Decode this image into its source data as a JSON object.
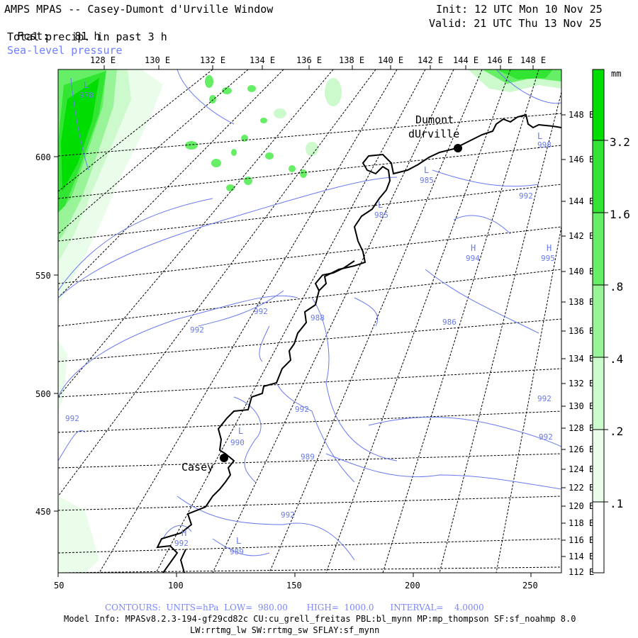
{
  "header": {
    "title": "AMPS MPAS -- Casey-Dumont d'Urville Window",
    "fcst_label": "Fcst:",
    "fcst_value": "81 h",
    "field": "Total precip. in past 3 h",
    "overlay": "Sea-level pressure",
    "init": "Init: 12 UTC Mon 10 Nov 25",
    "valid": "Valid: 21 UTC Thu 13 Nov 25"
  },
  "axes": {
    "top_lon": [
      "128 E",
      "130 E",
      "132 E",
      "134 E",
      "136 E",
      "138 E",
      "140 E",
      "142 E",
      "144 E",
      "146 E",
      "148 E"
    ],
    "right_lon": [
      "148 E",
      "146 E",
      "144 E",
      "142 E",
      "140 E",
      "138 E",
      "136 E",
      "134 E",
      "132 E",
      "130 E",
      "128 E",
      "126 E",
      "124 E",
      "122 E",
      "120 E",
      "118 E",
      "116 E",
      "114 E",
      "112 E"
    ],
    "left": [
      "600",
      "550",
      "500",
      "450"
    ],
    "bottom": [
      "50",
      "100",
      "150",
      "200",
      "250"
    ]
  },
  "colorbar": {
    "unit": "mm",
    "labels": [
      "3.2",
      "1.6",
      ".8",
      ".4",
      ".2",
      ".1"
    ],
    "colors": [
      "#00dd00",
      "#33e533",
      "#66ee66",
      "#99f499",
      "#ccfacc",
      "#eafdea"
    ]
  },
  "map": {
    "stations": [
      {
        "name": "Dumont",
        "name2": "dUrville"
      },
      {
        "name": "Casey"
      }
    ],
    "contour_labels": [
      "978",
      "985",
      "985",
      "992",
      "994",
      "995",
      "992",
      "992",
      "988",
      "986",
      "992",
      "992",
      "992",
      "992",
      "990",
      "989",
      "992",
      "992",
      "989",
      "998"
    ],
    "pressure_centers": [
      "L",
      "L",
      "L",
      "H",
      "H",
      "L",
      "L",
      "H",
      "L"
    ]
  },
  "footer": {
    "contours": "CONTOURS:  UNITS=hPa  LOW=  980.00       HIGH=  1000.0      INTERVAL=    4.0000",
    "model_info": "Model Info: MPASv8.2.3-194-gf29cd82c CU:cu_grell_freitas PBL:bl_mynn MP:mp_thompson SF:sf_noahmp 8.0",
    "model_info2": "LW:rrtmg_lw SW:rrtmg_sw SFLAY:sf_mynn"
  }
}
